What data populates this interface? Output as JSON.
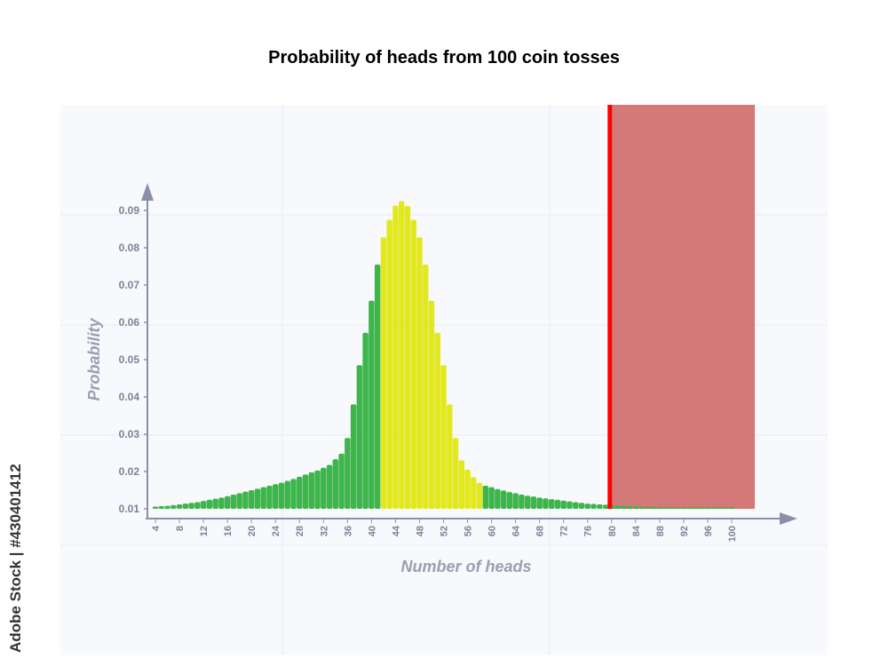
{
  "chart_data": {
    "type": "bar",
    "title": "Probability of heads from 100 coin tosses",
    "xlabel": "Number of heads",
    "ylabel": "Probability",
    "x_tick_labels": [
      "4",
      "8",
      "12",
      "16",
      "20",
      "24",
      "28",
      "32",
      "36",
      "40",
      "44",
      "48",
      "52",
      "56",
      "60",
      "64",
      "68",
      "72",
      "76",
      "80",
      "84",
      "88",
      "92",
      "96",
      "100"
    ],
    "y_tick_labels": [
      "0.01",
      "0.02",
      "0.03",
      "0.04",
      "0.05",
      "0.06",
      "0.07",
      "0.08",
      "0.09"
    ],
    "ylim": [
      0.01,
      0.09
    ],
    "x": [
      4,
      5,
      6,
      7,
      8,
      9,
      10,
      11,
      12,
      13,
      14,
      15,
      16,
      17,
      18,
      19,
      20,
      21,
      22,
      23,
      24,
      25,
      26,
      27,
      28,
      29,
      30,
      31,
      32,
      33,
      34,
      35,
      36,
      37,
      38,
      39,
      40,
      41,
      42,
      43,
      44,
      45,
      46,
      47,
      48,
      49,
      50,
      51,
      52,
      53,
      54,
      55,
      56,
      57,
      58,
      59,
      60,
      61,
      62,
      63,
      64,
      65,
      66,
      67,
      68,
      69,
      70,
      71,
      72,
      73,
      74,
      75,
      76,
      77,
      78,
      79,
      80,
      81,
      82,
      83,
      84,
      85,
      86,
      87,
      88,
      89,
      90,
      91,
      92,
      93,
      94,
      95,
      96,
      97,
      98,
      99,
      100
    ],
    "values": [
      0.0106,
      0.0107,
      0.0108,
      0.011,
      0.0112,
      0.0114,
      0.0116,
      0.0118,
      0.0121,
      0.0124,
      0.0127,
      0.013,
      0.0134,
      0.0138,
      0.0142,
      0.0146,
      0.015,
      0.0154,
      0.0158,
      0.0162,
      0.0166,
      0.017,
      0.0175,
      0.018,
      0.0186,
      0.0192,
      0.0198,
      0.0203,
      0.021,
      0.0218,
      0.0233,
      0.0248,
      0.029,
      0.038,
      0.0485,
      0.0572,
      0.0658,
      0.0755,
      0.0828,
      0.0875,
      0.0913,
      0.0925,
      0.0912,
      0.0875,
      0.0828,
      0.0755,
      0.0658,
      0.0572,
      0.0485,
      0.038,
      0.029,
      0.023,
      0.0205,
      0.0185,
      0.017,
      0.0162,
      0.0158,
      0.0153,
      0.0149,
      0.0145,
      0.0142,
      0.0138,
      0.0135,
      0.0133,
      0.013,
      0.0128,
      0.0126,
      0.0124,
      0.0122,
      0.012,
      0.0118,
      0.0116,
      0.0114,
      0.0113,
      0.0112,
      0.0111,
      0.011,
      0.0109,
      0.0108,
      0.0107,
      0.0107,
      0.0106,
      0.0106,
      0.0106,
      0.0105,
      0.0105,
      0.0105,
      0.0105,
      0.0105,
      0.0105,
      0.0105,
      0.0105,
      0.0105,
      0.0105,
      0.0105,
      0.0105,
      0.0105
    ],
    "highlight_range": [
      42,
      58
    ],
    "threshold_x": 80,
    "rejection_region": [
      80,
      100
    ],
    "colors": {
      "bar": "#3cb54a",
      "bar_highlight": "#e3e81a",
      "threshold_line": "#ff0000",
      "region": "#d57878",
      "axis": "#8a90a8",
      "plot_bg": "#f8f9fc",
      "grid": "#e9ecf3"
    },
    "grid": true,
    "legend": "none"
  },
  "watermark_text": "Adobe Stock | #430401412"
}
